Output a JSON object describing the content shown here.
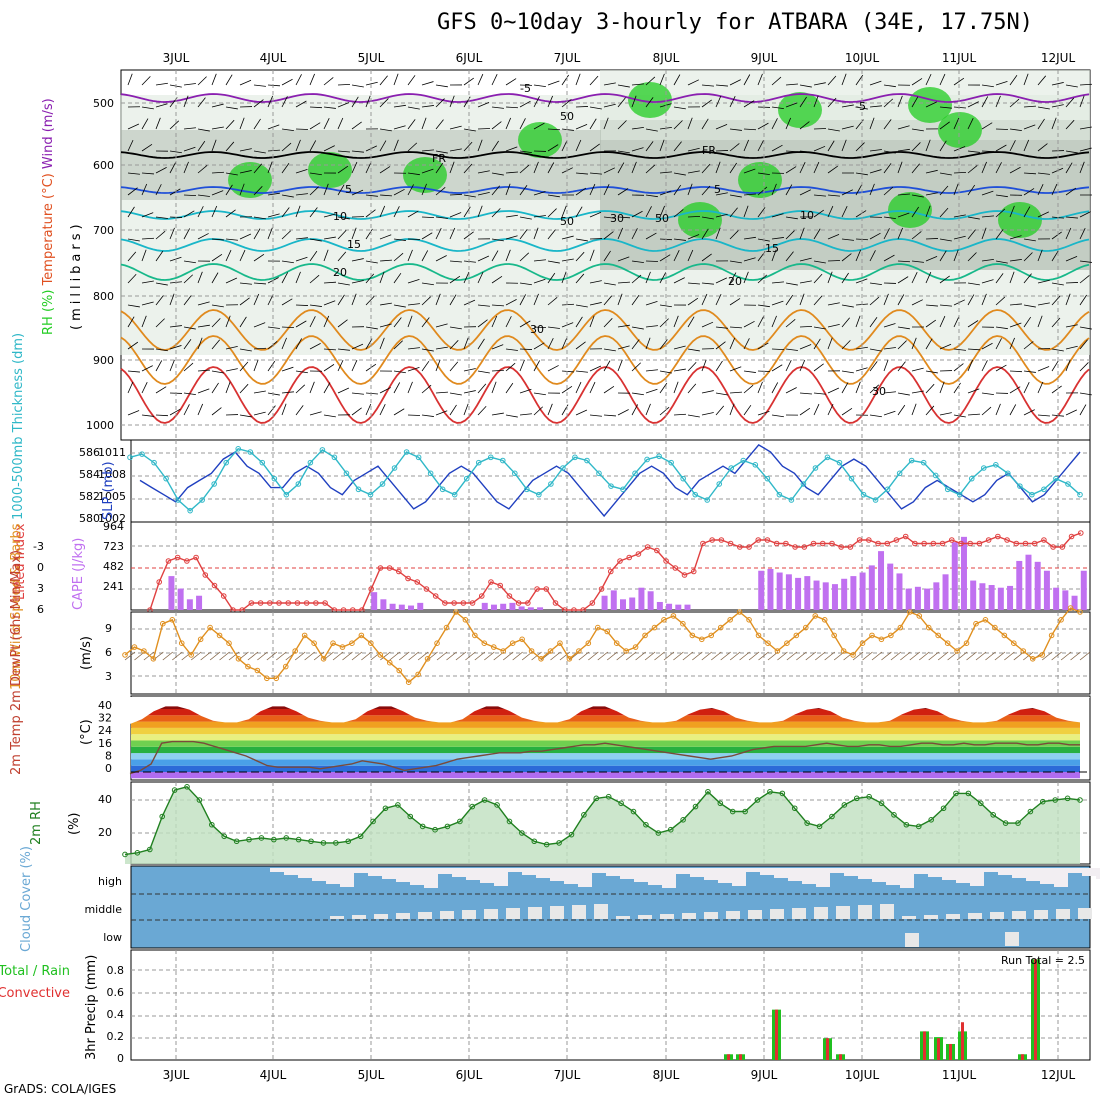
{
  "title": "GFS 0~10day 3-hourly for ATBARA (34E, 17.75N)",
  "credit": "GrADS: COLA/IGES",
  "dates": [
    "3JUL",
    "4JUL",
    "5JUL",
    "6JUL",
    "7JUL",
    "8JUL",
    "9JUL",
    "10JUL",
    "11JUL",
    "12JUL"
  ],
  "colors": {
    "rh_green": "#22cc22",
    "rh_gray": "#a8b4a8",
    "rh_light": "#dfeadf",
    "temp_purple": "#8a1fb0",
    "temp_blue": "#1f4fd8",
    "temp_teal": "#19b6c8",
    "temp_green": "#18b88a",
    "temp_orange": "#e08a1e",
    "temp_red": "#d83232",
    "cape_bar": "#c070f0",
    "li_line": "#e04040",
    "slp_line": "#2040c0",
    "thick_line": "#30b8c8",
    "wind_line": "#e09020",
    "rh2m_line": "#208020",
    "cloud_blue": "#6aa8d4",
    "cloud_white": "#f2eef2",
    "rain_green": "#20c020",
    "rain_red": "#e03030"
  },
  "panels": {
    "upper": {
      "side_labels": [
        "RH (%)",
        "Temperature (°C)",
        "Wind (m/s)"
      ],
      "axis_label": "(millibars)",
      "ticks": [
        "500",
        "600",
        "700",
        "800",
        "900",
        "1000"
      ],
      "contour_labels": [
        "-5",
        "-5",
        "FR",
        "FR",
        "5",
        "5",
        "10",
        "10",
        "15",
        "15",
        "20",
        "20",
        "30",
        "30",
        "50",
        "50",
        "30",
        "50"
      ]
    },
    "slp": {
      "left_label": "1000-500mb Thickness (dm)",
      "right_label": "SLP (mb)",
      "left_ticks": [
        "586",
        "584",
        "582",
        "580"
      ],
      "right_ticks": [
        "1011",
        "1008",
        "1005",
        "1002"
      ]
    },
    "cape": {
      "left_label": "Lifted Index",
      "right_label": "CAPE (J/kg)",
      "li_ticks": [
        "-3",
        "0",
        "3",
        "6"
      ],
      "cape_ticks": [
        "964",
        "723",
        "482",
        "241"
      ]
    },
    "wind10": {
      "label": "10m Wind Speed & Barbs",
      "unit": "(m/s)",
      "ticks": [
        "9",
        "6",
        "3"
      ]
    },
    "temp2m": {
      "label": "2m Temp 2m DewPt (6hr Min/Max)",
      "unit": "(°C)",
      "ticks": [
        "40",
        "32",
        "24",
        "16",
        "8",
        "0"
      ]
    },
    "rh2m": {
      "label": "2m RH",
      "unit": "(%)",
      "ticks": [
        "40",
        "20"
      ]
    },
    "cloud": {
      "label": "Cloud Cover (%)",
      "levels": [
        "high",
        "middle",
        "low"
      ]
    },
    "precip": {
      "label": "3hr Precip (mm)",
      "legend_total": "Total / Rain",
      "legend_conv": "Convective",
      "run_total": "Run Total = 2.5",
      "ticks": [
        "0.8",
        "0.6",
        "0.4",
        "0.2",
        "0"
      ]
    }
  },
  "chart_data": [
    {
      "type": "line",
      "title": "1000-500mb Thickness (dm) / SLP (mb)",
      "x_axis": "3-hourly steps from 2 JUL 12Z",
      "series": [
        {
          "name": "SLP (mb)",
          "values": [
            1007,
            1006,
            1005,
            1004,
            1006,
            1007,
            1008,
            1010,
            1011,
            1009,
            1008,
            1006,
            1006,
            1008,
            1009,
            1008,
            1006,
            1005,
            1007,
            1008,
            1009,
            1007,
            1005,
            1003,
            1004,
            1006,
            1008,
            1009,
            1008,
            1006,
            1004,
            1003,
            1005,
            1007,
            1008,
            1009,
            1008,
            1006,
            1004,
            1002,
            1004,
            1006,
            1008,
            1009,
            1008,
            1006,
            1005,
            1007,
            1008,
            1009,
            1008,
            1010,
            1012,
            1011,
            1009,
            1008,
            1006,
            1005,
            1007,
            1009,
            1010,
            1009,
            1007,
            1005,
            1003,
            1004,
            1006,
            1007,
            1006,
            1005,
            1004,
            1005,
            1007,
            1008,
            1006,
            1004,
            1005,
            1007,
            1009,
            1011
          ]
        },
        {
          "name": "1000-500mb Thickness (dm)",
          "values": [
            585.5,
            585.8,
            585,
            583.5,
            581.5,
            580.5,
            581.5,
            583,
            585,
            586.3,
            586,
            585,
            583.5,
            582,
            583,
            585,
            586.2,
            585.5,
            584,
            582.5,
            582,
            583,
            584.5,
            586,
            585.5,
            584,
            582.5,
            582,
            583.5,
            585,
            585.5,
            585.2,
            584,
            582.5,
            582,
            583,
            584.5,
            585.5,
            585.2,
            584,
            582.8,
            582.5,
            584,
            585.3,
            585.6,
            585,
            583.5,
            582,
            581.5,
            583,
            584.5,
            585.2,
            584.8,
            583.5,
            582,
            581.5,
            583,
            584.5,
            585.5,
            585,
            583.5,
            582,
            581.5,
            582.5,
            584,
            585.2,
            585,
            583.8,
            582.5,
            582,
            583.5,
            584.5,
            584.8,
            584,
            582.8,
            582,
            582.5,
            583.5,
            583,
            582
          ]
        }
      ]
    },
    {
      "type": "bar",
      "title": "CAPE (J/kg) / Lifted Index",
      "series": [
        {
          "name": "CAPE (J/kg)",
          "values": [
            0,
            0,
            380,
            240,
            120,
            160,
            0,
            0,
            0,
            0,
            0,
            0,
            0,
            0,
            0,
            0,
            0,
            0,
            0,
            0,
            0,
            0,
            0,
            0,
            200,
            120,
            70,
            60,
            50,
            80,
            0,
            0,
            0,
            0,
            0,
            0,
            80,
            60,
            70,
            80,
            40,
            30,
            30,
            0,
            0,
            0,
            0,
            0,
            0,
            160,
            220,
            120,
            140,
            250,
            210,
            90,
            70,
            60,
            60,
            0,
            0,
            0,
            0,
            0,
            0,
            0,
            440,
            460,
            420,
            400,
            360,
            380,
            330,
            310,
            290,
            350,
            380,
            420,
            500,
            660,
            520,
            410,
            240,
            260,
            240,
            310,
            400,
            760,
            820,
            330,
            300,
            280,
            250,
            270,
            550,
            620,
            540,
            440,
            250,
            220,
            160,
            440
          ]
        },
        {
          "name": "Lifted Index",
          "values": [
            6,
            2,
            -1,
            -1.5,
            -1,
            -1.5,
            1,
            2.5,
            4,
            6,
            6,
            5,
            5,
            5,
            5,
            5,
            5,
            5,
            5,
            5,
            6,
            6,
            6,
            6,
            3,
            0,
            0,
            0.5,
            1.5,
            2,
            3,
            4,
            5,
            5,
            5,
            5,
            4,
            2,
            2.5,
            4,
            5,
            5,
            3,
            3,
            5,
            6,
            6,
            6,
            5,
            3,
            0.5,
            -1,
            -1.5,
            -2,
            -3,
            -2.5,
            -1,
            0,
            1,
            0.5,
            -3.5,
            -4,
            -4,
            -3.5,
            -3,
            -3,
            -4,
            -4,
            -3.5,
            -3.5,
            -3,
            -3,
            -3.5,
            -3.5,
            -3.5,
            -3,
            -3,
            -4,
            -4,
            -3.5,
            -3.5,
            -4,
            -4.5,
            -3.5,
            -3.5,
            -3.5,
            -3.5,
            -4,
            -3.5,
            -3.5,
            -3.5,
            -4,
            -4.5,
            -4,
            -3.5,
            -3.5,
            -3.5,
            -4,
            -3,
            -3,
            -4.5,
            -5
          ]
        }
      ]
    },
    {
      "type": "line",
      "title": "10m Wind Speed (m/s)",
      "series": [
        {
          "name": "10m Wind Speed",
          "values": [
            4.5,
            5.5,
            5,
            4,
            8.5,
            9,
            6,
            4.5,
            6.5,
            8,
            7,
            6,
            4,
            3,
            2.5,
            1.5,
            1.5,
            3,
            5,
            7,
            6,
            4,
            6,
            5.5,
            6,
            7,
            6,
            4.5,
            3.5,
            2.5,
            1,
            2,
            4,
            6,
            8,
            10,
            9,
            7,
            6,
            5.5,
            5,
            6,
            6.5,
            5,
            4,
            5,
            6,
            4,
            5,
            6,
            8,
            7.5,
            6,
            5,
            5.5,
            7,
            8,
            9,
            9.5,
            8.5,
            7,
            6.5,
            7,
            8,
            9,
            10,
            9,
            7,
            6,
            5,
            6,
            7,
            8,
            9.5,
            9,
            7,
            5,
            4.5,
            6,
            7,
            6.5,
            7,
            8,
            10,
            9.5,
            8,
            7,
            6,
            5,
            6,
            8.5,
            9,
            8,
            7,
            6,
            5,
            4,
            4.5,
            7,
            9,
            10.5,
            10
          ]
        }
      ]
    },
    {
      "type": "line",
      "title": "2m Temp / 2m DewPt (°C)",
      "series": [
        {
          "name": "2m Temp",
          "values": [
            30,
            33,
            38,
            41,
            41,
            39,
            35,
            32,
            31,
            31,
            33,
            38,
            41,
            41,
            38,
            34,
            32,
            31,
            31,
            33,
            38,
            41,
            41,
            38,
            34,
            32,
            31,
            31,
            33,
            38,
            41,
            41,
            38,
            34,
            32,
            31,
            31,
            33,
            38,
            41,
            41,
            38,
            34,
            32,
            31,
            31,
            32,
            36,
            39,
            40,
            38,
            34,
            32,
            31,
            31,
            32,
            36,
            39,
            40,
            38,
            34,
            32,
            31,
            31,
            32,
            36,
            39,
            40,
            38,
            34,
            32,
            31,
            31,
            32,
            36,
            39,
            40,
            38,
            34,
            32,
            31
          ]
        },
        {
          "name": "2m DewPt",
          "values": [
            -1,
            1,
            5,
            18,
            19,
            19,
            19,
            18,
            16,
            14,
            12,
            10,
            7,
            4,
            3,
            3,
            3,
            3,
            2,
            3,
            4,
            5,
            7,
            6,
            5,
            3,
            1,
            2,
            3,
            4,
            6,
            8,
            9,
            10,
            11,
            12,
            12,
            12,
            13,
            13,
            14,
            15,
            16,
            17,
            17,
            18,
            17,
            16,
            15,
            14,
            13,
            12,
            11,
            10,
            9,
            8,
            9,
            10,
            12,
            14,
            15,
            16,
            16,
            16,
            16,
            17,
            18,
            17,
            16,
            16,
            17,
            17,
            16,
            16,
            17,
            18,
            18,
            17,
            17,
            18,
            17,
            17,
            18,
            18,
            18,
            17,
            17,
            18,
            18,
            17,
            17
          ]
        }
      ]
    },
    {
      "type": "line",
      "title": "2m RH (%)",
      "series": [
        {
          "name": "2m RH",
          "values": [
            7,
            8,
            10,
            30,
            46,
            48,
            40,
            25,
            18,
            15,
            16,
            17,
            16,
            17,
            16,
            15,
            14,
            14,
            15,
            18,
            27,
            35,
            37,
            30,
            24,
            22,
            24,
            27,
            36,
            40,
            37,
            27,
            20,
            15,
            13,
            14,
            19,
            31,
            41,
            42,
            38,
            33,
            25,
            20,
            22,
            28,
            36,
            45,
            38,
            33,
            33,
            40,
            45,
            44,
            35,
            26,
            24,
            30,
            37,
            41,
            42,
            38,
            31,
            25,
            24,
            28,
            35,
            44,
            44,
            38,
            31,
            26,
            26,
            33,
            39,
            40,
            41,
            40
          ]
        }
      ]
    },
    {
      "type": "bar",
      "title": "3hr Precip (mm)",
      "series": [
        {
          "name": "Total / Rain",
          "values": [
            0.05,
            0.05,
            0.44,
            0.19,
            0.05,
            0.25,
            0.2,
            0.14,
            0.25,
            0.05,
            0.88
          ]
        },
        {
          "name": "Convective",
          "values": [
            0.05,
            0.05,
            0.44,
            0.19,
            0.05,
            0.25,
            0.19,
            0.14,
            0.33,
            0.05,
            0.88
          ]
        }
      ],
      "categories": [
        "8JUL+15",
        "8JUL+18",
        "9JUL+03",
        "9JUL+15",
        "9JUL+18",
        "10JUL+15",
        "10JUL+18",
        "10JUL+21",
        "11JUL+00",
        "11JUL+18",
        "11JUL+21"
      ]
    }
  ]
}
